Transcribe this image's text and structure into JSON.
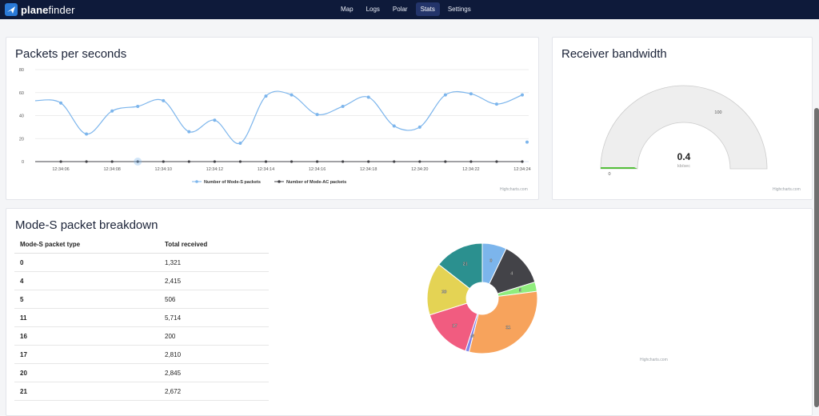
{
  "brand": {
    "name_bold": "plane",
    "name_light": "finder"
  },
  "nav": [
    {
      "label": "Map",
      "active": false
    },
    {
      "label": "Logs",
      "active": false
    },
    {
      "label": "Polar",
      "active": false
    },
    {
      "label": "Stats",
      "active": true
    },
    {
      "label": "Settings",
      "active": false
    }
  ],
  "packets_card": {
    "title": "Packets per seconds",
    "credit": "Highcharts.com",
    "legend": [
      "Number of Mode-S packets",
      "Number of Mode-AC packets"
    ]
  },
  "bandwidth_card": {
    "title": "Receiver bandwidth",
    "value": "0.4",
    "unit": "kb/sec",
    "min_label": "0",
    "max_label": "100",
    "credit": "Highcharts.com"
  },
  "breakdown_card": {
    "title": "Mode-S packet breakdown",
    "credit": "Highcharts.com",
    "table_headers": [
      "Mode-S packet type",
      "Total received"
    ],
    "rows": [
      {
        "type": "0",
        "total": "1,321"
      },
      {
        "type": "4",
        "total": "2,415"
      },
      {
        "type": "5",
        "total": "506"
      },
      {
        "type": "11",
        "total": "5,714"
      },
      {
        "type": "16",
        "total": "200"
      },
      {
        "type": "17",
        "total": "2,810"
      },
      {
        "type": "20",
        "total": "2,845"
      },
      {
        "type": "21",
        "total": "2,672"
      }
    ]
  },
  "chart_data": [
    {
      "type": "line",
      "x": [
        "12:34:05",
        "12:34:06",
        "12:34:07",
        "12:34:08",
        "12:34:09",
        "12:34:10",
        "12:34:11",
        "12:34:12",
        "12:34:13",
        "12:34:14",
        "12:34:15",
        "12:34:16",
        "12:34:17",
        "12:34:18",
        "12:34:19",
        "12:34:20",
        "12:34:21",
        "12:34:22",
        "12:34:23",
        "12:34:24"
      ],
      "tick_labels": [
        "12:34:06",
        "12:34:08",
        "12:34:10",
        "12:34:12",
        "12:34:14",
        "12:34:16",
        "12:34:18",
        "12:34:20",
        "12:34:22",
        "12:34:24"
      ],
      "ylim": [
        0,
        80
      ],
      "yticks": [
        0,
        20,
        40,
        60,
        80
      ],
      "series": [
        {
          "name": "Number of Mode-S packets",
          "color": "#7cb5ec",
          "values": [
            53,
            51,
            24,
            44,
            48,
            53,
            26,
            36,
            16,
            57,
            58,
            41,
            48,
            56,
            31,
            30,
            58,
            59,
            50,
            58
          ]
        },
        {
          "name": "Number of Mode-AC packets",
          "color": "#434348",
          "values": [
            0,
            0,
            0,
            0,
            0,
            0,
            0,
            0,
            0,
            0,
            0,
            0,
            0,
            0,
            0,
            0,
            0,
            0,
            0,
            0
          ]
        }
      ],
      "trailing_point": 17,
      "grid": true,
      "legend_position": "bottom"
    },
    {
      "type": "gauge",
      "value": 0.4,
      "min": 0,
      "max": 100
    },
    {
      "type": "pie",
      "labels": [
        "0",
        "4",
        "5",
        "11",
        "16",
        "17",
        "20",
        "21"
      ],
      "values": [
        1321,
        2415,
        506,
        5714,
        200,
        2810,
        2845,
        2672
      ],
      "colors": [
        "#7cb5ec",
        "#434348",
        "#90ed7d",
        "#f7a35c",
        "#8085e9",
        "#f15c80",
        "#e4d354",
        "#2b908f"
      ],
      "donut": true
    }
  ]
}
